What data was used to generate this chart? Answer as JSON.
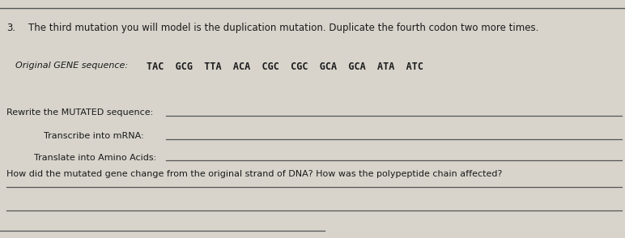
{
  "bg_color": "#d8d4cc",
  "text_color": "#1a1a1a",
  "line_color": "#555555",
  "question_number": "3.",
  "question_text": "The third mutation you will model is the duplication mutation. Duplicate the fourth codon two more times.",
  "original_label": "Original GENE sequence:",
  "original_sequence": "TAC  GCG  TTA  ACA  CGC  CGC  GCA  GCA  ATA  ATC",
  "rewrite_label": "Rewrite the MUTATED sequence:",
  "transcribe_label": "Transcribe into mRNA:",
  "translate_label": "Translate into Amino Acids:",
  "how_label": "How did the mutated gene change from the original strand of DNA? How was the polypeptide chain affected?",
  "figsize": [
    7.72,
    2.94
  ],
  "dpi": 100
}
